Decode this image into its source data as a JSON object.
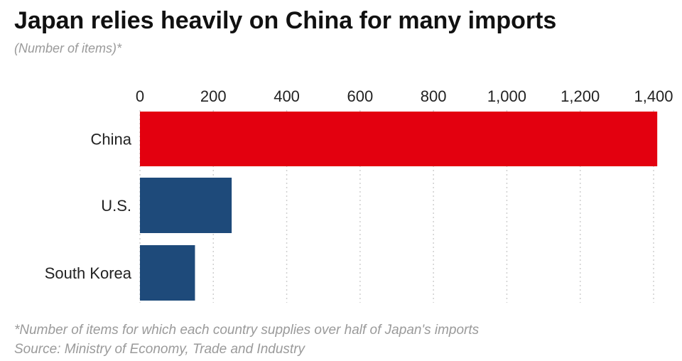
{
  "colors": {
    "china_bar": "#e3000f",
    "other_bar": "#1e4a7a",
    "grid": "#cfcfcf"
  },
  "chart_data": {
    "type": "bar",
    "orientation": "horizontal",
    "title": "Japan relies heavily on China for many imports",
    "subtitle": "(Number of items)*",
    "categories": [
      "China",
      "U.S.",
      "South Korea"
    ],
    "values": [
      1410,
      250,
      150
    ],
    "xlim": [
      0,
      1400
    ],
    "ticks": [
      0,
      200,
      400,
      600,
      800,
      1000,
      1200,
      1400
    ],
    "tick_labels": [
      "0",
      "200",
      "400",
      "600",
      "800",
      "1,000",
      "1,200",
      "1,400"
    ],
    "axis_position": "top",
    "grid": "vertical dotted",
    "footnote": "*Number of items for which each country supplies over half of Japan's imports",
    "source": "Source: Ministry of Economy, Trade and Industry"
  }
}
